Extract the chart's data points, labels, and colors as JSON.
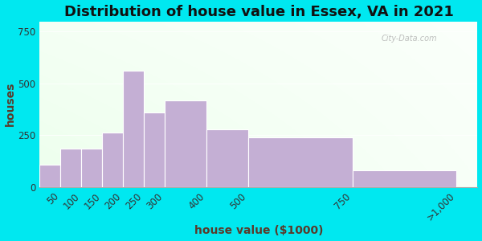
{
  "title": "Distribution of house value in Essex, VA in 2021",
  "xlabel": "house value ($1000)",
  "ylabel": "houses",
  "bar_color": "#c4afd4",
  "bar_edge_color": "#ffffff",
  "outer_bg": "#00e8f0",
  "yticks": [
    0,
    250,
    500,
    750
  ],
  "ylim": [
    0,
    800
  ],
  "title_fontsize": 13,
  "axis_label_fontsize": 10,
  "tick_fontsize": 8.5,
  "watermark_text": "City-Data.com",
  "label_color": "#333333",
  "bins": [
    0,
    50,
    100,
    150,
    200,
    250,
    300,
    400,
    500,
    750,
    1000
  ],
  "heights": [
    110,
    185,
    185,
    265,
    560,
    360,
    420,
    280,
    240,
    80
  ],
  "xtick_labels": [
    "50",
    "100",
    "150",
    "200",
    "250",
    "300",
    "400",
    "500",
    "750",
    ">1,000"
  ],
  "xtick_positions": [
    50,
    100,
    150,
    200,
    250,
    300,
    400,
    500,
    750,
    1000
  ]
}
